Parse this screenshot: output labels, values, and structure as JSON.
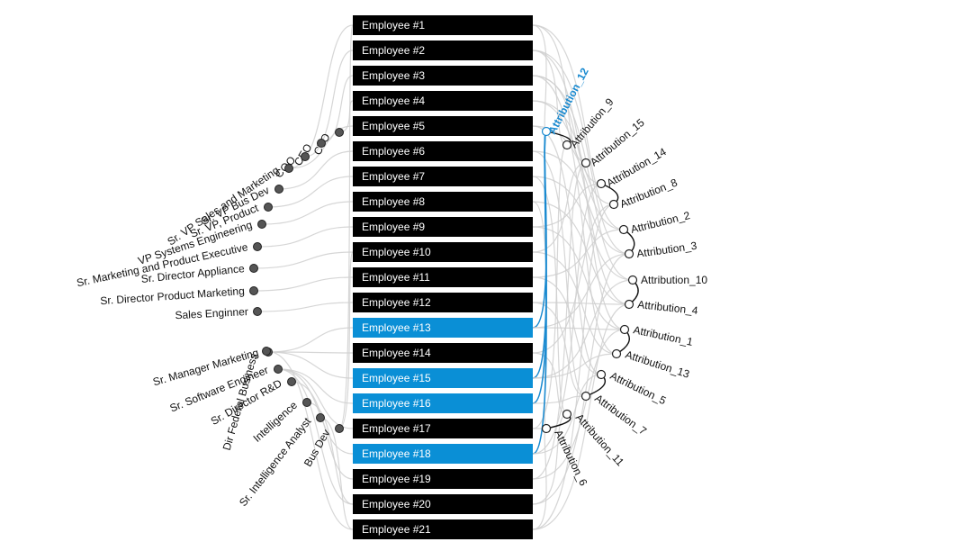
{
  "colors": {
    "employee_default": "#000000",
    "employee_highlight": "#0a8fd6",
    "role_node": "#555555",
    "attribute_node": "#ffffff",
    "link": "#cfcfcf",
    "link_highlight": "#1a8ad0",
    "attribute_highlight_text": "#1a8ad0"
  },
  "highlighted_attribute": "Attribution_12",
  "employees": [
    {
      "label": "Employee #1",
      "highlighted": false
    },
    {
      "label": "Employee #2",
      "highlighted": false
    },
    {
      "label": "Employee #3",
      "highlighted": false
    },
    {
      "label": "Employee #4",
      "highlighted": false
    },
    {
      "label": "Employee #5",
      "highlighted": false
    },
    {
      "label": "Employee #6",
      "highlighted": false
    },
    {
      "label": "Employee #7",
      "highlighted": false
    },
    {
      "label": "Employee #8",
      "highlighted": false
    },
    {
      "label": "Employee #9",
      "highlighted": false
    },
    {
      "label": "Employee #10",
      "highlighted": false
    },
    {
      "label": "Employee #11",
      "highlighted": false
    },
    {
      "label": "Employee #12",
      "highlighted": false
    },
    {
      "label": "Employee #13",
      "highlighted": true
    },
    {
      "label": "Employee #14",
      "highlighted": false
    },
    {
      "label": "Employee #15",
      "highlighted": true
    },
    {
      "label": "Employee #16",
      "highlighted": true
    },
    {
      "label": "Employee #17",
      "highlighted": false
    },
    {
      "label": "Employee #18",
      "highlighted": true
    },
    {
      "label": "Employee #19",
      "highlighted": false
    },
    {
      "label": "Employee #20",
      "highlighted": false
    },
    {
      "label": "Employee #21",
      "highlighted": false
    }
  ],
  "roles": [
    "CTO",
    "CEO",
    "COO",
    "Sr. VP Sales and Marketing",
    "Sr. VP Bus Dev",
    "Sr. VP, Product",
    "VP Systems Engineering",
    "Sr. Marketing and Product Executive",
    "Sr. Director Appliance",
    "Sr. Director Product Marketing",
    "Sales Enginner",
    "Sr. Manager Marketing",
    "Sr. Software Engineer",
    "Sr. Director R&D",
    "Intelligence",
    "Sr. Intelligence Analyst",
    "Bus Dev",
    "Dir Federal Business"
  ],
  "attributes": [
    "Attribution_12",
    "Attribution_9",
    "Attribution_15",
    "Attribution_14",
    "Attribution_8",
    "Attribution_2",
    "Attribution_3",
    "Attribution_10",
    "Attribution_4",
    "Attribution_1",
    "Attribution_13",
    "Attribution_5",
    "Attribution_7",
    "Attribution_11",
    "Attribution_6"
  ],
  "attribute_pairs": [
    [
      "Attribution_12",
      "Attribution_9"
    ],
    [
      "Attribution_14",
      "Attribution_8"
    ],
    [
      "Attribution_2",
      "Attribution_3"
    ],
    [
      "Attribution_10",
      "Attribution_4"
    ],
    [
      "Attribution_1",
      "Attribution_13"
    ],
    [
      "Attribution_5",
      "Attribution_7"
    ],
    [
      "Attribution_11",
      "Attribution_6"
    ]
  ],
  "role_links": [
    [
      0,
      3
    ],
    [
      1,
      2
    ],
    [
      2,
      1
    ],
    [
      3,
      4
    ],
    [
      4,
      5
    ],
    [
      5,
      6
    ],
    [
      6,
      7
    ],
    [
      7,
      8
    ],
    [
      8,
      9
    ],
    [
      9,
      10
    ],
    [
      10,
      11
    ],
    [
      11,
      12
    ],
    [
      11,
      13
    ],
    [
      11,
      14
    ],
    [
      12,
      15
    ],
    [
      12,
      16
    ],
    [
      12,
      17
    ],
    [
      13,
      18
    ],
    [
      14,
      19
    ],
    [
      15,
      20
    ],
    [
      16,
      0
    ],
    [
      17,
      20
    ],
    [
      16,
      9
    ],
    [
      12,
      19
    ],
    [
      3,
      0
    ]
  ],
  "attribute_links": [
    [
      0,
      0
    ],
    [
      0,
      2
    ],
    [
      0,
      5
    ],
    [
      1,
      1
    ],
    [
      1,
      6
    ],
    [
      1,
      9
    ],
    [
      2,
      3
    ],
    [
      2,
      7
    ],
    [
      2,
      10
    ],
    [
      3,
      4
    ],
    [
      3,
      8
    ],
    [
      4,
      5
    ],
    [
      4,
      11
    ],
    [
      5,
      6
    ],
    [
      5,
      12
    ],
    [
      6,
      7
    ],
    [
      6,
      13
    ],
    [
      7,
      8
    ],
    [
      7,
      14
    ],
    [
      8,
      9
    ],
    [
      8,
      3
    ],
    [
      9,
      10
    ],
    [
      9,
      2
    ],
    [
      10,
      11
    ],
    [
      10,
      5
    ],
    [
      11,
      12
    ],
    [
      11,
      8
    ],
    [
      12,
      0
    ],
    [
      12,
      6
    ],
    [
      12,
      9
    ],
    [
      13,
      13
    ],
    [
      13,
      4
    ],
    [
      14,
      0
    ],
    [
      14,
      10
    ],
    [
      14,
      7
    ],
    [
      15,
      0
    ],
    [
      15,
      12
    ],
    [
      16,
      14
    ],
    [
      16,
      1
    ],
    [
      17,
      0
    ],
    [
      17,
      11
    ],
    [
      17,
      3
    ],
    [
      18,
      2
    ],
    [
      18,
      9
    ],
    [
      19,
      13
    ],
    [
      19,
      6
    ],
    [
      20,
      14
    ],
    [
      20,
      8
    ],
    [
      20,
      4
    ]
  ]
}
